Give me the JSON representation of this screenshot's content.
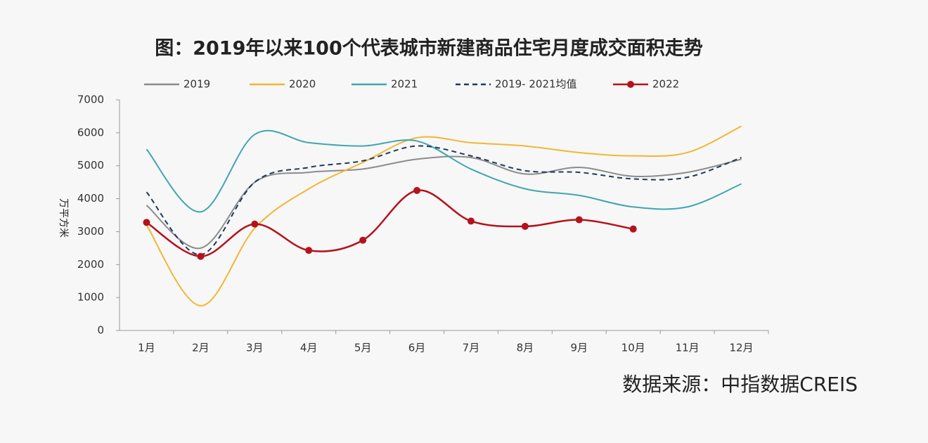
{
  "chart_data": {
    "type": "line",
    "title": "图：2019年以来100个代表城市新建商品住宅月度成交面积走势",
    "y_label": "万平方米",
    "source": "数据来源：中指数据CREIS",
    "categories": [
      "1月",
      "2月",
      "3月",
      "4月",
      "5月",
      "6月",
      "7月",
      "8月",
      "9月",
      "10月",
      "11月",
      "12月"
    ],
    "ylim": [
      0,
      7000
    ],
    "yticks": [
      0,
      1000,
      2000,
      3000,
      4000,
      5000,
      6000,
      7000
    ],
    "series": [
      {
        "name": "2019",
        "color": "#8c8c8c",
        "values": [
          3800,
          2500,
          4500,
          4800,
          4900,
          5200,
          5250,
          4750,
          4950,
          4680,
          4800,
          5200
        ]
      },
      {
        "name": "2020",
        "color": "#f2b632",
        "values": [
          3200,
          750,
          3100,
          4300,
          5100,
          5850,
          5700,
          5600,
          5400,
          5300,
          5400,
          6200
        ]
      },
      {
        "name": "2021",
        "color": "#3fa6b0",
        "values": [
          5500,
          3600,
          5950,
          5700,
          5600,
          5750,
          4900,
          4300,
          4100,
          3750,
          3750,
          4450
        ]
      },
      {
        "name": "2019- 2021均值",
        "color": "#1f3a5f",
        "dash": true,
        "values": [
          4200,
          2300,
          4500,
          4950,
          5150,
          5600,
          5300,
          4850,
          4800,
          4600,
          4650,
          5250
        ]
      },
      {
        "name": "2022",
        "color": "#b5121b",
        "marker": true,
        "values": [
          3280,
          2250,
          3230,
          2430,
          2740,
          4250,
          3320,
          3160,
          3360,
          3080,
          null,
          null
        ]
      }
    ]
  }
}
